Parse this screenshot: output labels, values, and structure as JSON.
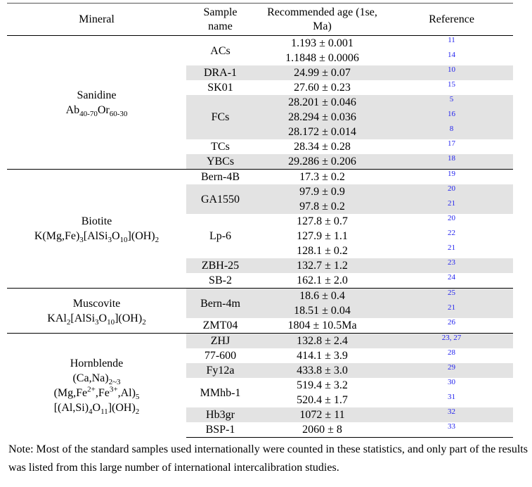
{
  "table": {
    "header": [
      [
        "Mineral"
      ],
      [
        "Sample",
        "name"
      ],
      [
        "Recommended age (1se,",
        "Ma)"
      ],
      [
        "Reference"
      ]
    ],
    "groups": [
      {
        "mineral": "Sanidine",
        "formula": [
          [
            {
              "t": "Ab"
            },
            {
              "sub": "40-70"
            },
            {
              "t": "Or"
            },
            {
              "sub": "60-30"
            }
          ]
        ],
        "samples": [
          {
            "name": "ACs",
            "ages": [
              "1.193 ± 0.001",
              "1.1848 ± 0.0006"
            ],
            "refs": [
              "11",
              "14"
            ],
            "shaded": false
          },
          {
            "name": "DRA-1",
            "ages": [
              "24.99 ± 0.07"
            ],
            "refs": [
              "10"
            ],
            "shaded": true
          },
          {
            "name": "SK01",
            "ages": [
              "27.60 ± 0.23"
            ],
            "refs": [
              "15"
            ],
            "shaded": false
          },
          {
            "name": "FCs",
            "ages": [
              "28.201 ± 0.046",
              "28.294 ± 0.036",
              "28.172 ± 0.014"
            ],
            "refs": [
              "5",
              "16",
              "8"
            ],
            "shaded": true
          },
          {
            "name": "TCs",
            "ages": [
              "28.34 ± 0.28"
            ],
            "refs": [
              "17"
            ],
            "shaded": false
          },
          {
            "name": "YBCs",
            "ages": [
              "29.286 ± 0.206"
            ],
            "refs": [
              "18"
            ],
            "shaded": true
          }
        ]
      },
      {
        "mineral": "Biotite",
        "formula": [
          [
            {
              "t": "K(Mg,Fe)"
            },
            {
              "sub": "3"
            },
            {
              "t": "[AlSi"
            },
            {
              "sub": "3"
            },
            {
              "t": "O"
            },
            {
              "sub": "10"
            },
            {
              "t": "](OH)"
            },
            {
              "sub": "2"
            }
          ]
        ],
        "samples": [
          {
            "name": "Bern-4B",
            "ages": [
              "17.3 ± 0.2"
            ],
            "refs": [
              "19"
            ],
            "shaded": false
          },
          {
            "name": "GA1550",
            "ages": [
              "97.9 ± 0.9",
              "97.8 ± 0.2"
            ],
            "refs": [
              "20",
              "21"
            ],
            "shaded": true
          },
          {
            "name": "Lp-6",
            "ages": [
              "127.8 ± 0.7",
              "127.9 ± 1.1",
              "128.1 ± 0.2"
            ],
            "refs": [
              "20",
              "22",
              "21"
            ],
            "shaded": false
          },
          {
            "name": "ZBH-25",
            "ages": [
              "132.7 ± 1.2"
            ],
            "refs": [
              "23"
            ],
            "shaded": true
          },
          {
            "name": "SB-2",
            "ages": [
              "162.1 ± 2.0"
            ],
            "refs": [
              "24"
            ],
            "shaded": false
          }
        ]
      },
      {
        "mineral": "Muscovite",
        "formula": [
          [
            {
              "t": "KAl"
            },
            {
              "sub": "2"
            },
            {
              "t": "[AlSi"
            },
            {
              "sub": "3"
            },
            {
              "t": "O"
            },
            {
              "sub": "10"
            },
            {
              "t": "](OH)"
            },
            {
              "sub": "2"
            }
          ]
        ],
        "samples": [
          {
            "name": "Bern-4m",
            "ages": [
              "18.6 ± 0.4",
              "18.51 ± 0.04"
            ],
            "refs": [
              "25",
              "21"
            ],
            "shaded": true
          },
          {
            "name": "ZMT04",
            "ages": [
              "1804 ± 10.5Ma"
            ],
            "refs": [
              "26"
            ],
            "shaded": false
          }
        ]
      },
      {
        "mineral": "Hornblende",
        "formula": [
          [
            {
              "t": "(Ca,Na)"
            },
            {
              "sub": "2~3"
            }
          ],
          [
            {
              "t": "(Mg,Fe"
            },
            {
              "sup": "2+"
            },
            {
              "t": ",Fe"
            },
            {
              "sup": "3+"
            },
            {
              "t": ",Al)"
            },
            {
              "sub": "5"
            }
          ],
          [
            {
              "t": "[(Al,Si)"
            },
            {
              "sub": "4"
            },
            {
              "t": "O"
            },
            {
              "sub": "11"
            },
            {
              "t": "](OH)"
            },
            {
              "sub": "2"
            }
          ]
        ],
        "samples": [
          {
            "name": "ZHJ",
            "ages": [
              "132.8 ± 2.4"
            ],
            "refs": [
              "23, 27"
            ],
            "shaded": true
          },
          {
            "name": "77-600",
            "ages": [
              "414.1 ± 3.9"
            ],
            "refs": [
              "28"
            ],
            "shaded": false
          },
          {
            "name": "Fy12a",
            "ages": [
              "433.8 ± 3.0"
            ],
            "refs": [
              "29"
            ],
            "shaded": true
          },
          {
            "name": "MMhb-1",
            "ages": [
              "519.4 ± 3.2",
              "520.4 ± 1.7"
            ],
            "refs": [
              "30",
              "31"
            ],
            "shaded": false
          },
          {
            "name": "Hb3gr",
            "ages": [
              "1072 ± 11"
            ],
            "refs": [
              "32"
            ],
            "shaded": true
          },
          {
            "name": "BSP-1",
            "ages": [
              "2060 ± 8"
            ],
            "refs": [
              "33"
            ],
            "shaded": false
          }
        ]
      }
    ]
  },
  "note": "Note: Most of the standard samples used internationally were counted in these statistics, and only part of the results was listed from this large number of international intercalibration studies."
}
